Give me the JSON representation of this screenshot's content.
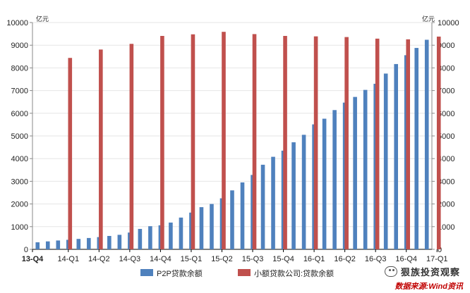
{
  "chart_data": {
    "type": "bar",
    "left_unit": "亿元",
    "right_unit": "亿元",
    "ylim": [
      0,
      10000
    ],
    "yticks": [
      0,
      1000,
      2000,
      3000,
      4000,
      5000,
      6000,
      7000,
      8000,
      9000,
      10000
    ],
    "x_labels": [
      "13-Q4",
      "14-Q1",
      "14-Q2",
      "14-Q3",
      "14-Q4",
      "15-Q1",
      "15-Q2",
      "15-Q3",
      "15-Q4",
      "16-Q1",
      "16-Q2",
      "16-Q3",
      "16-Q4",
      "17-Q1"
    ],
    "series": [
      {
        "name": "P2P贷款余额",
        "color": "#4f81bd",
        "values": [
          310,
          350,
          390,
          420,
          460,
          500,
          540,
          590,
          640,
          740,
          900,
          1020,
          1060,
          1180,
          1400,
          1620,
          1860,
          2000,
          2250,
          2600,
          2950,
          3280,
          3730,
          4080,
          4350,
          4720,
          5050,
          5510,
          5760,
          6140,
          6470,
          6720,
          7030,
          7300,
          7750,
          8170,
          8560,
          8880,
          9240
        ]
      },
      {
        "name": "小额贷款公司:贷款余额",
        "color": "#c0504d",
        "values": [
          8440,
          8810,
          9060,
          9410,
          9480,
          9590,
          9490,
          9410,
          9390,
          9360,
          9290,
          9260,
          9380
        ]
      }
    ]
  },
  "watermark": "狠族投资观察",
  "source": "数据来源:Wind资讯"
}
